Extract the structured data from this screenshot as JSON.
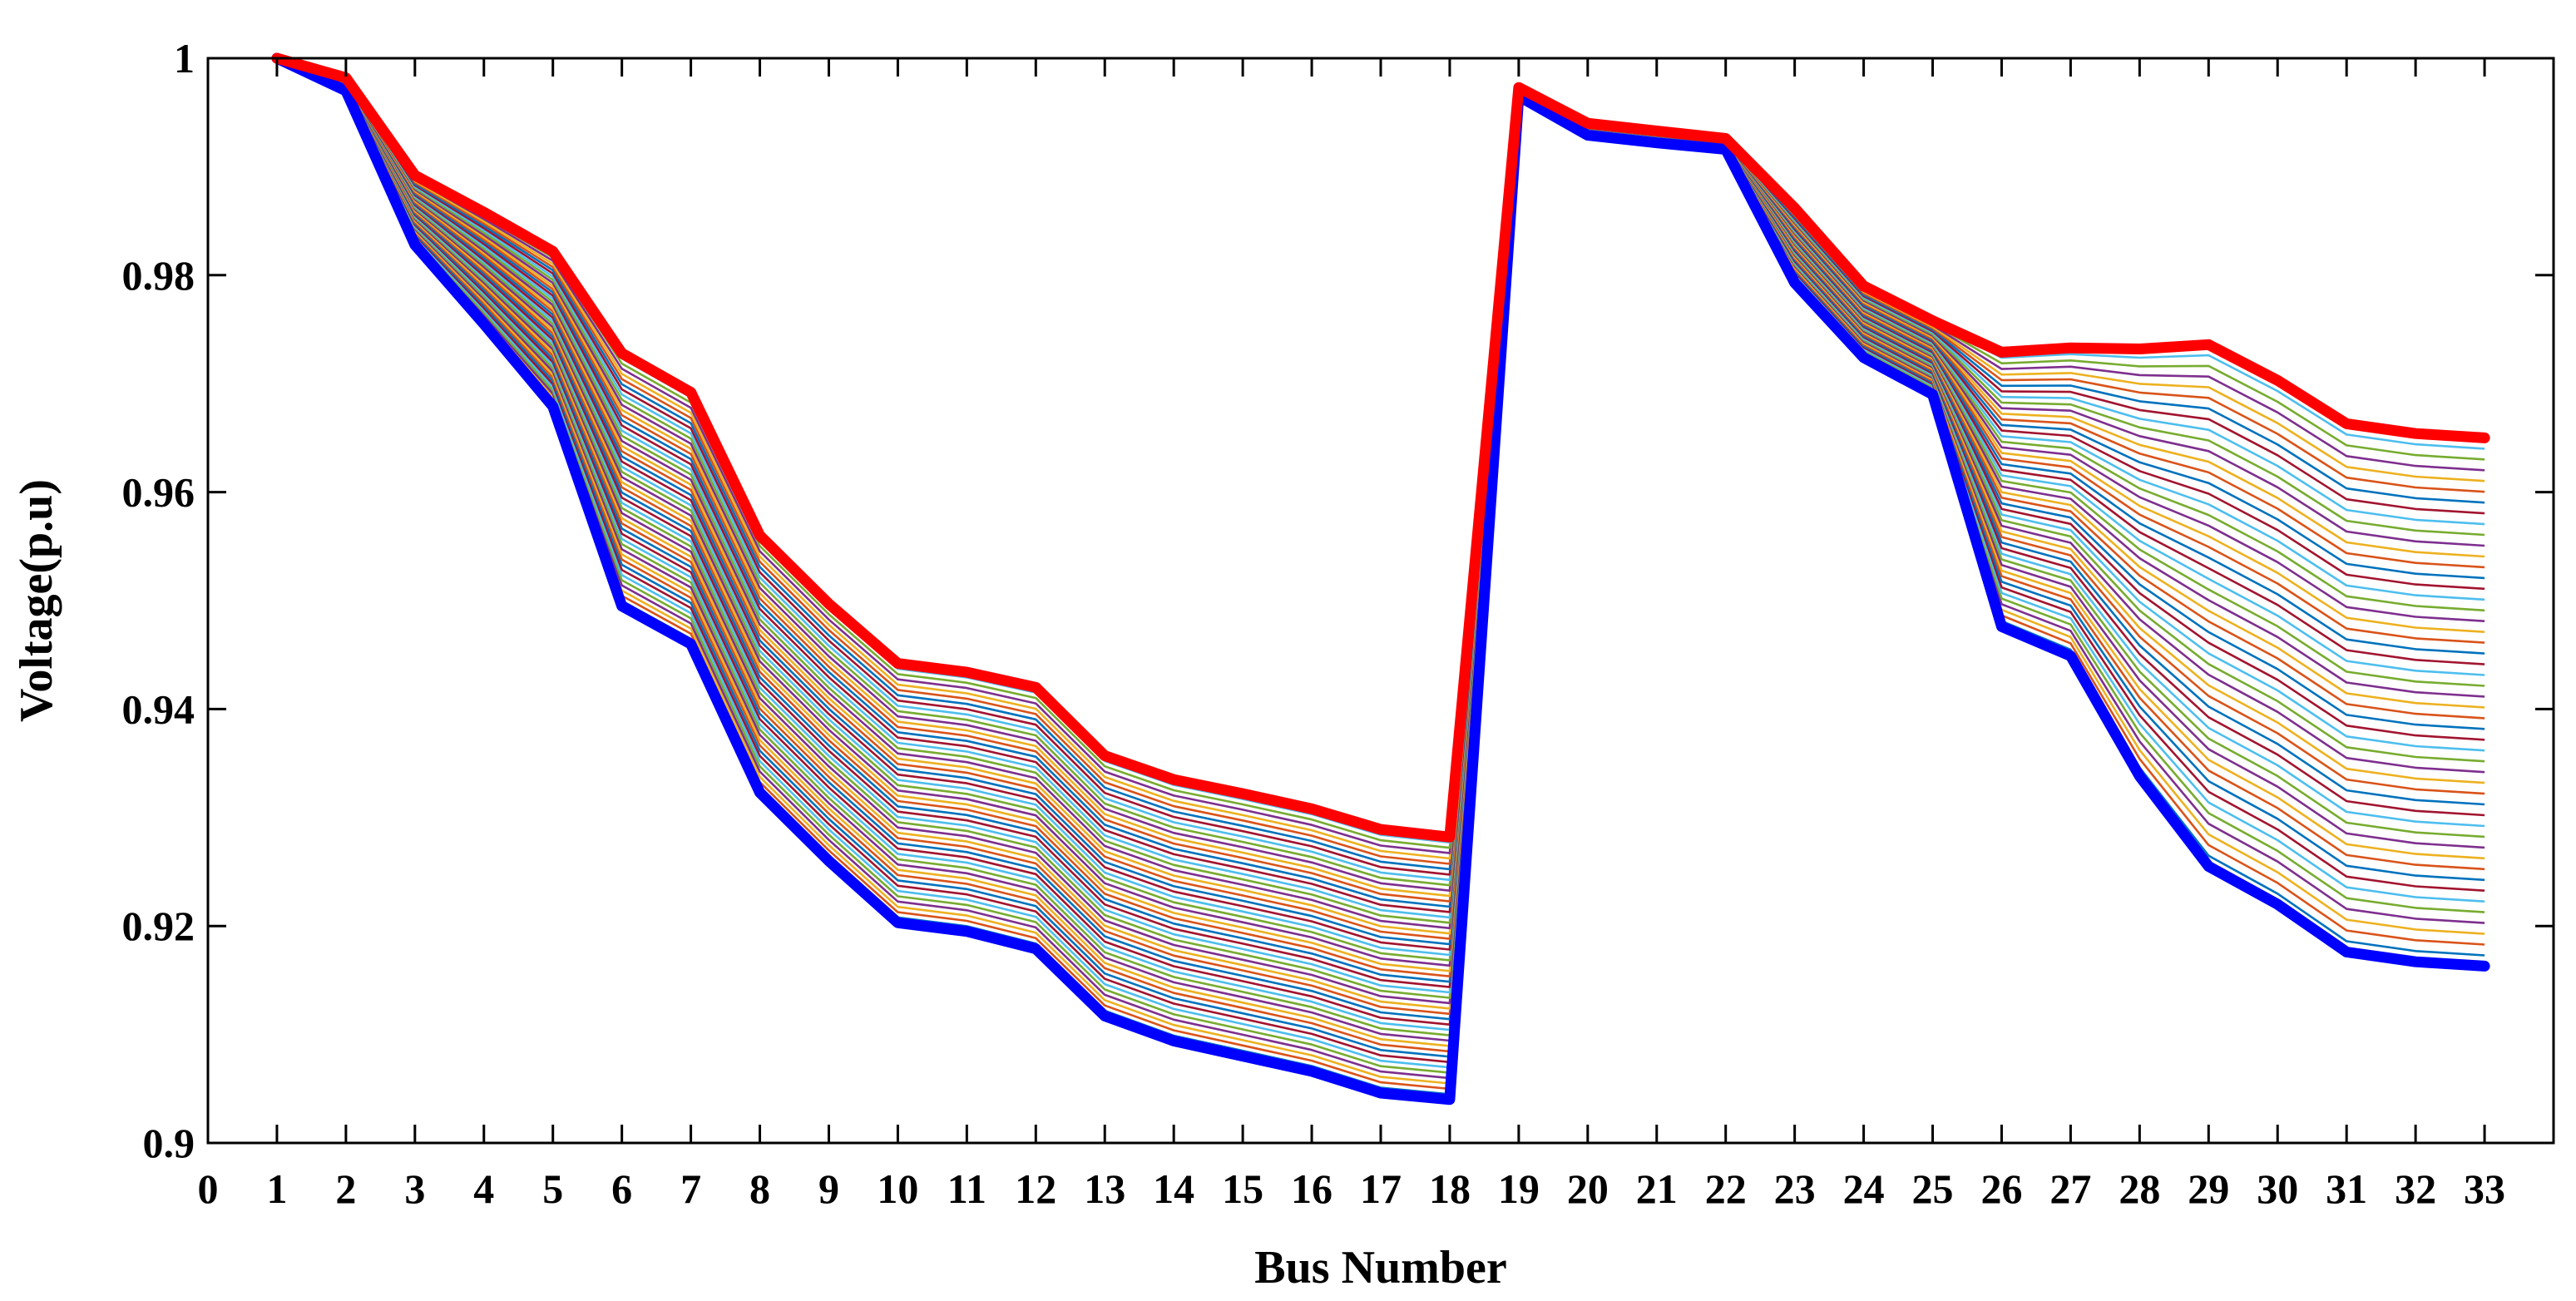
{
  "chart_data": {
    "type": "line",
    "title": "",
    "xlabel": "Bus Number",
    "ylabel": "Voltage(p.u)",
    "xlim": [
      0,
      34
    ],
    "ylim": [
      0.9,
      1.0
    ],
    "xticks": [
      0,
      1,
      2,
      3,
      4,
      5,
      6,
      7,
      8,
      9,
      10,
      11,
      12,
      13,
      14,
      15,
      16,
      17,
      18,
      19,
      20,
      21,
      22,
      23,
      24,
      25,
      26,
      27,
      28,
      29,
      30,
      31,
      32,
      33
    ],
    "yticks": [
      0.9,
      0.92,
      0.94,
      0.96,
      0.98,
      1.0
    ],
    "ytick_labels": [
      "0.9",
      "0.92",
      "0.94",
      "0.96",
      "0.98",
      "1"
    ],
    "grid": false,
    "legend": "none",
    "x": [
      1,
      2,
      3,
      4,
      5,
      6,
      7,
      8,
      9,
      10,
      11,
      12,
      13,
      14,
      15,
      16,
      17,
      18,
      19,
      20,
      21,
      22,
      23,
      24,
      25,
      26,
      27,
      28,
      29,
      30,
      31,
      32,
      33
    ],
    "intermediate_series_count": 48,
    "intermediate_palette": [
      "#0072BD",
      "#D95319",
      "#EDB120",
      "#7E2F8E",
      "#77AC30",
      "#4DBEEE",
      "#A2142F"
    ],
    "series": [
      {
        "color": "#ff0000",
        "values": [
          1.0,
          0.9982,
          0.9892,
          0.9858,
          0.9822,
          0.9728,
          0.9692,
          0.956,
          0.9497,
          0.9442,
          0.9434,
          0.942,
          0.9357,
          0.9335,
          0.9322,
          0.9308,
          0.9289,
          0.9282,
          0.9973,
          0.994,
          0.9933,
          0.9926,
          0.9862,
          0.979,
          0.9758,
          0.9729,
          0.9733,
          0.9732,
          0.9736,
          0.9703,
          0.9663,
          0.9654,
          0.965
        ]
      },
      {
        "color": "#0000ff",
        "values": [
          1.0,
          0.997,
          0.9828,
          0.9755,
          0.9679,
          0.9495,
          0.946,
          0.9323,
          0.926,
          0.9203,
          0.9195,
          0.9179,
          0.9117,
          0.9094,
          0.908,
          0.9066,
          0.9046,
          0.904,
          0.9965,
          0.9929,
          0.9922,
          0.9916,
          0.9793,
          0.9724,
          0.969,
          0.9476,
          0.9449,
          0.9338,
          0.9255,
          0.922,
          0.9176,
          0.9167,
          0.9163
        ]
      }
    ]
  }
}
